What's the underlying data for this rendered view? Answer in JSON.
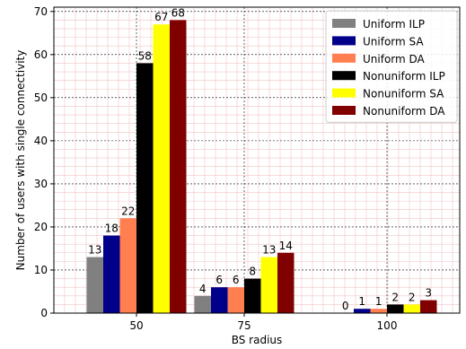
{
  "chart_data": {
    "type": "bar",
    "categories": [
      "50",
      "75",
      "100"
    ],
    "xlabel": "BS radius",
    "ylabel": "Number of users with single connectivity",
    "ylim": [
      0,
      71
    ],
    "yticks": [
      0,
      10,
      20,
      30,
      40,
      50,
      60,
      70
    ],
    "grid": true,
    "legend_position": "top-right",
    "series": [
      {
        "name": "Uniform ILP",
        "color": "#808080",
        "values": [
          13,
          4,
          0
        ]
      },
      {
        "name": "Uniform SA",
        "color": "#00008b",
        "values": [
          18,
          6,
          1
        ]
      },
      {
        "name": "Uniform DA",
        "color": "#ff7f50",
        "values": [
          22,
          6,
          1
        ]
      },
      {
        "name": "Nonuniform ILP",
        "color": "#000000",
        "values": [
          58,
          8,
          2
        ]
      },
      {
        "name": "Nonuniform SA",
        "color": "#ffff00",
        "values": [
          67,
          13,
          2
        ]
      },
      {
        "name": "Nonuniform DA",
        "color": "#800000",
        "values": [
          68,
          14,
          3
        ]
      }
    ]
  }
}
